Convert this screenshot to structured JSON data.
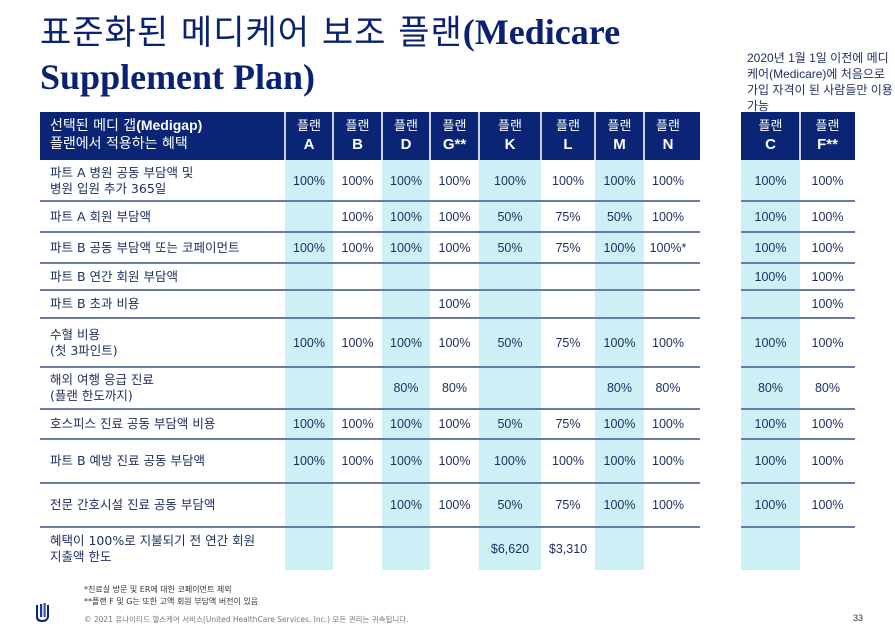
{
  "title": {
    "korean": "표준화된 메디케어 보조 플랜",
    "english_line1": "(Medicare",
    "english_line2": "Supplement Plan)"
  },
  "side_note": "2020년 1월 1일 이전에 메디케어(Medicare)에 처음으로 가입 자격이 된 사람들만 이용 가능",
  "table": {
    "header_label_line1_ko": "선택된 메디 갭",
    "header_label_line1_en": "(Medigap)",
    "header_label_line2": "플랜에서 적용하는 혜택",
    "plan_word": "플랜",
    "plans": [
      "A",
      "B",
      "D",
      "G**",
      "K",
      "L",
      "M",
      "N",
      "C",
      "F**"
    ],
    "shaded_plans": [
      "A",
      "D",
      "K",
      "M",
      "C"
    ],
    "rows": [
      {
        "label": [
          "파트 A 병원 공동 부담액 및",
          "병원 입원 추가 365일"
        ],
        "values": [
          "100%",
          "100%",
          "100%",
          "100%",
          "100%",
          "100%",
          "100%",
          "100%",
          "100%",
          "100%"
        ]
      },
      {
        "label": [
          "파트 A 회원 부담액"
        ],
        "values": [
          "",
          "100%",
          "100%",
          "100%",
          "50%",
          "75%",
          "50%",
          "100%",
          "100%",
          "100%"
        ]
      },
      {
        "label": [
          "파트 B 공동 부담액 또는 코페이먼트"
        ],
        "values": [
          "100%",
          "100%",
          "100%",
          "100%",
          "50%",
          "75%",
          "100%",
          "100%*",
          "100%",
          "100%"
        ]
      },
      {
        "label": [
          "파트 B 연간 회원 부담액"
        ],
        "values": [
          "",
          "",
          "",
          "",
          "",
          "",
          "",
          "",
          "100%",
          "100%"
        ]
      },
      {
        "label": [
          "파트 B 초과 비용"
        ],
        "values": [
          "",
          "",
          "",
          "100%",
          "",
          "",
          "",
          "",
          "",
          "100%"
        ]
      },
      {
        "label": [
          "수혈 비용",
          "(첫 3파인트)"
        ],
        "values": [
          "100%",
          "100%",
          "100%",
          "100%",
          "50%",
          "75%",
          "100%",
          "100%",
          "100%",
          "100%"
        ]
      },
      {
        "label": [
          "해외 여행 응급 진료",
          "(플랜 한도까지)"
        ],
        "values": [
          "",
          "",
          "80%",
          "80%",
          "",
          "",
          "80%",
          "80%",
          "80%",
          "80%"
        ]
      },
      {
        "label": [
          "호스피스 진료 공동 부담액 비용"
        ],
        "values": [
          "100%",
          "100%",
          "100%",
          "100%",
          "50%",
          "75%",
          "100%",
          "100%",
          "100%",
          "100%"
        ]
      },
      {
        "label": [
          "파트 B 예방 진료 공동 부담액"
        ],
        "values": [
          "100%",
          "100%",
          "100%",
          "100%",
          "100%",
          "100%",
          "100%",
          "100%",
          "100%",
          "100%"
        ]
      },
      {
        "label": [
          "전문 간호시설 진료 공동 부담액"
        ],
        "values": [
          "",
          "",
          "100%",
          "100%",
          "50%",
          "75%",
          "100%",
          "100%",
          "100%",
          "100%"
        ]
      },
      {
        "label": [
          "혜택이 100%로 지불되기 전 연간 회원",
          "지출액 한도"
        ],
        "values": [
          "",
          "",
          "",
          "",
          "$6,620",
          "$3,310",
          "",
          "",
          "",
          ""
        ]
      }
    ]
  },
  "footnotes": [
    "*진료실 방문 및 ER에 대한 코페이먼트 제외",
    "**플랜 F 및 G는 또한 고액 회원 부담액 버전이 있음"
  ],
  "copyright": "© 2021 유나이티드 헬스케어 서비스(United HealthCare Services, Inc.) 모든 권리는 귀속됩니다.",
  "page_number": "33",
  "colors": {
    "header_bg": "#0a2575",
    "shade": "#cdeff6",
    "text": "#1f2d5c"
  }
}
